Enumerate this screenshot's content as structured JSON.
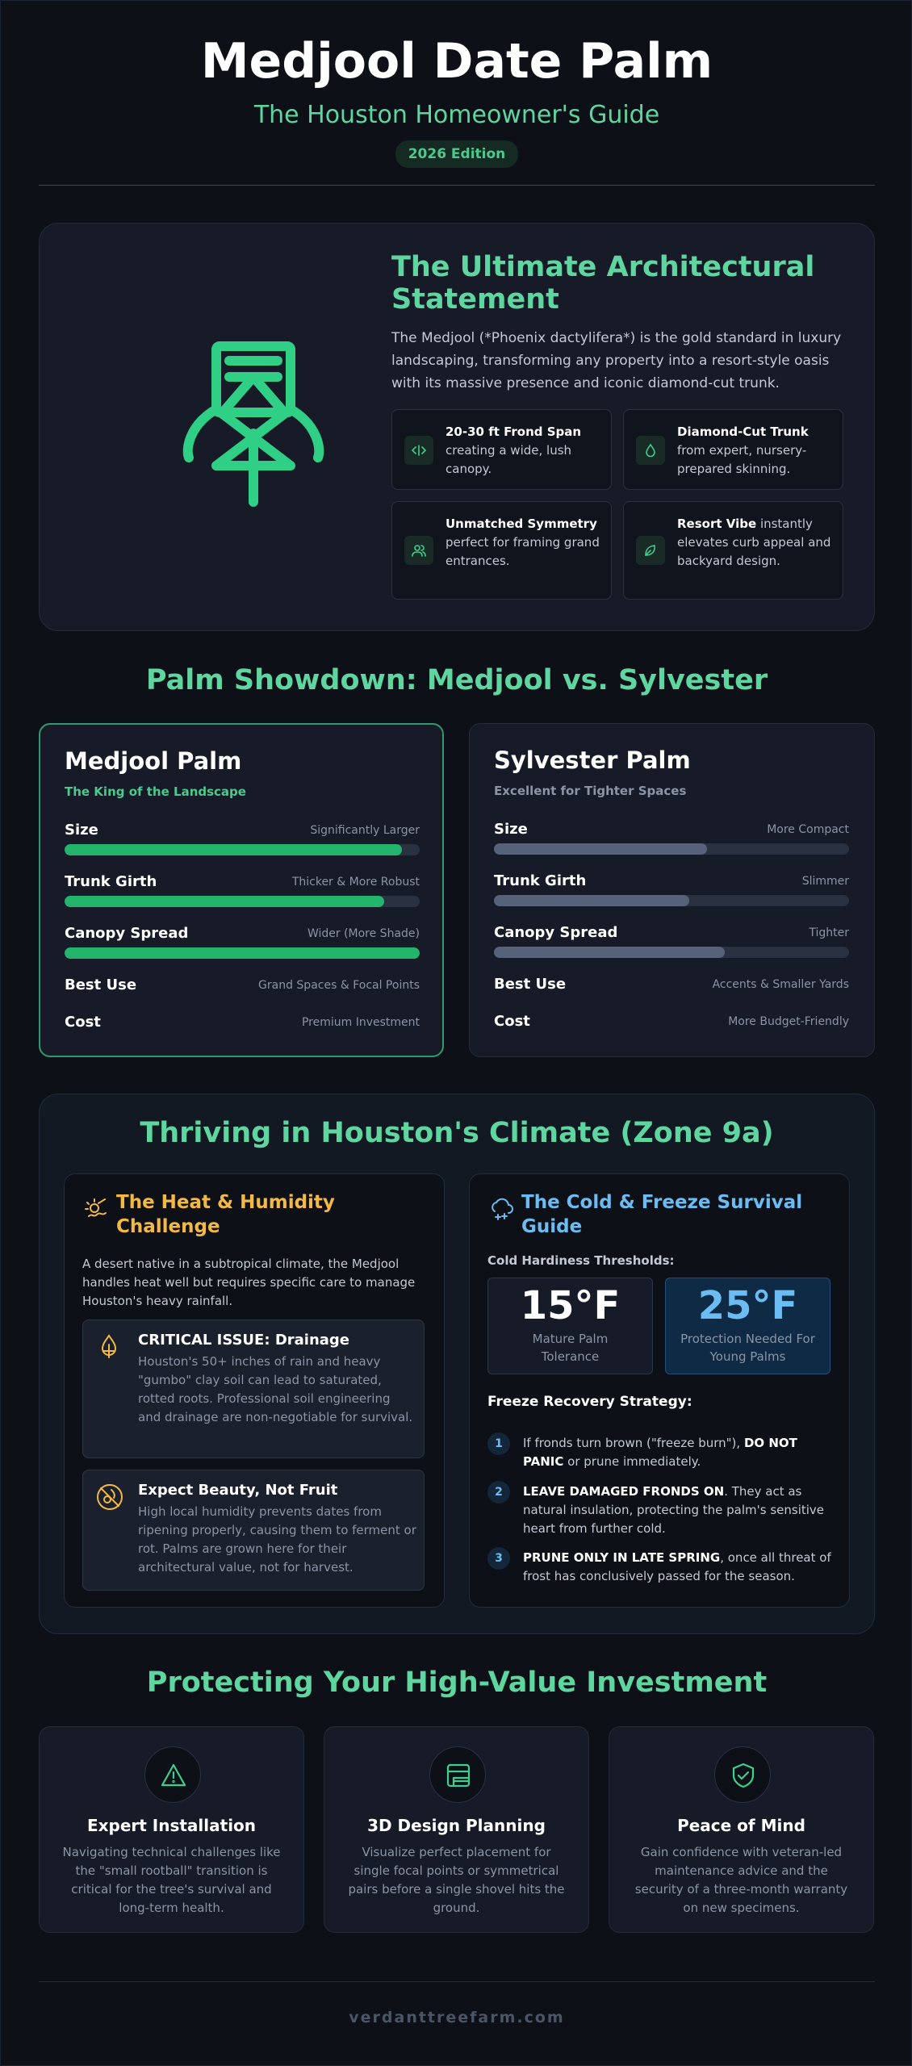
{
  "header": {
    "title": "Medjool Date Palm",
    "subtitle": "The Houston Homeowner's Guide",
    "edition": "2026 Edition"
  },
  "hero": {
    "icon": "palm-tree-icon",
    "title": "The Ultimate Architectural Statement",
    "description": "The Medjool (*Phoenix dactylifera*) is the gold standard in luxury landscaping, transforming any property into a resort-style oasis with its massive presence and iconic diamond-cut trunk.",
    "features": [
      {
        "icon": "expand-icon",
        "bold": "20-30 ft Frond Span",
        "text": "creating a wide, lush canopy."
      },
      {
        "icon": "droplet-icon",
        "bold": "Diamond-Cut Trunk",
        "text": "from expert, nursery-prepared skinning."
      },
      {
        "icon": "users-icon",
        "bold": "Unmatched Symmetry",
        "text": "perfect for framing grand entrances."
      },
      {
        "icon": "leaf-icon",
        "bold": "Resort Vibe",
        "text": "instantly elevates curb appeal and backyard design."
      }
    ]
  },
  "showdown": {
    "title": "Palm Showdown: Medjool vs. Sylvester",
    "medjool": {
      "name": "Medjool Palm",
      "tagline": "The King of the Landscape",
      "rows": [
        {
          "label": "Size",
          "value": "Significantly Larger",
          "level": 0.95
        },
        {
          "label": "Trunk Girth",
          "value": "Thicker & More Robust",
          "level": 0.9
        },
        {
          "label": "Canopy Spread",
          "value": "Wider (More Shade)",
          "level": 1.0
        }
      ],
      "best_use_label": "Best Use",
      "best_use": "Grand Spaces & Focal Points",
      "cost_label": "Cost",
      "cost": "Premium Investment"
    },
    "sylvester": {
      "name": "Sylvester Palm",
      "tagline": "Excellent for Tighter Spaces",
      "rows": [
        {
          "label": "Size",
          "value": "More Compact",
          "level": 0.6
        },
        {
          "label": "Trunk Girth",
          "value": "Slimmer",
          "level": 0.55
        },
        {
          "label": "Canopy Spread",
          "value": "Tighter",
          "level": 0.65
        }
      ],
      "best_use_label": "Best Use",
      "best_use": "Accents & Smaller Yards",
      "cost_label": "Cost",
      "cost": "More Budget-Friendly"
    },
    "colors": {
      "medjool": "#22b56b",
      "sylvester": "#56627a"
    }
  },
  "climate": {
    "title": "Thriving in Houston's Climate (Zone 9a)",
    "heat": {
      "icon": "sun-heat-icon",
      "title": "The Heat & Humidity Challenge",
      "description": "A desert native in a subtropical climate, the Medjool handles heat well but requires specific care to manage Houston's heavy rainfall.",
      "issues": [
        {
          "icon": "drainage-icon",
          "title": "CRITICAL ISSUE: Drainage",
          "text": "Houston's 50+ inches of rain and heavy \"gumbo\" clay soil can lead to saturated, rotted roots. Professional soil engineering and drainage are non-negotiable for survival."
        },
        {
          "icon": "no-fruit-icon",
          "title": "Expect Beauty, Not Fruit",
          "text": "High local humidity prevents dates from ripening properly, causing them to ferment or rot. Palms are grown here for their architectural value, not for harvest."
        }
      ]
    },
    "cold": {
      "icon": "snow-cloud-icon",
      "title": "The Cold & Freeze Survival Guide",
      "thresholds_label": "Cold Hardiness Thresholds:",
      "thresholds": [
        {
          "value": "15°F",
          "label": "Mature Palm Tolerance"
        },
        {
          "value": "25°F",
          "label": "Protection Needed For Young Palms"
        }
      ],
      "strategy_label": "Freeze Recovery Strategy:",
      "steps": [
        {
          "num": "1",
          "pre": "If fronds turn brown (\"freeze burn\"), ",
          "bold": "DO NOT PANIC",
          "post": " or prune immediately."
        },
        {
          "num": "2",
          "pre": "",
          "bold": "LEAVE DAMAGED FRONDS ON",
          "post": ". They act as natural insulation, protecting the palm's sensitive heart from further cold."
        },
        {
          "num": "3",
          "pre": "",
          "bold": "PRUNE ONLY IN LATE SPRING",
          "post": ", once all threat of frost has conclusively passed for the season."
        }
      ]
    },
    "colors": {
      "heat": "#f4b942",
      "cold": "#6bbcf2"
    }
  },
  "protect": {
    "title": "Protecting Your High-Value Investment",
    "cards": [
      {
        "icon": "warning-icon",
        "title": "Expert Installation",
        "text": "Navigating technical challenges like the \"small rootball\" transition is critical for the tree's survival and long-term health."
      },
      {
        "icon": "design-layout-icon",
        "title": "3D Design Planning",
        "text": "Visualize perfect placement for single focal points or symmetrical pairs before a single shovel hits the ground."
      },
      {
        "icon": "shield-check-icon",
        "title": "Peace of Mind",
        "text": "Gain confidence with veteran-led maintenance advice and the security of a three-month warranty on new specimens."
      }
    ]
  },
  "footer": {
    "site": "verdanttreefarm.com"
  }
}
